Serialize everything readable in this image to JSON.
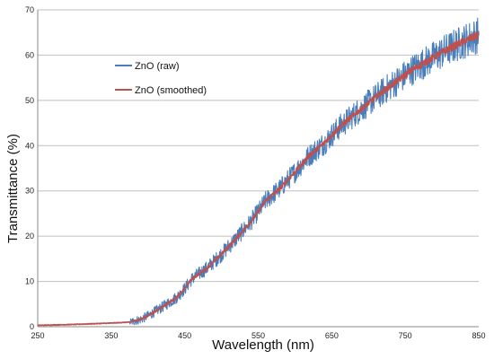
{
  "chart_data": {
    "type": "line",
    "title": "",
    "xlabel": "Wavelength (nm)",
    "ylabel": "Transmittance (%)",
    "xlim": [
      250,
      850
    ],
    "ylim": [
      0,
      70
    ],
    "x_ticks": [
      250,
      350,
      450,
      550,
      650,
      750,
      850
    ],
    "y_ticks": [
      0,
      10,
      20,
      30,
      40,
      50,
      60,
      70
    ],
    "x_tick_labels": [
      "250",
      "350",
      "450",
      "550",
      "650",
      "750",
      "850"
    ],
    "y_tick_labels": [
      "0",
      "10",
      "20",
      "30",
      "40",
      "50",
      "60",
      "70"
    ],
    "grid": "horizontal",
    "legend_position": "top-left",
    "series": [
      {
        "name": "ZnO (raw)",
        "color": "#4a7ebb",
        "x": [
          250,
          300,
          350,
          375,
          390,
          400,
          420,
          440,
          450,
          460,
          480,
          500,
          520,
          540,
          550,
          560,
          580,
          600,
          620,
          640,
          650,
          660,
          680,
          700,
          720,
          740,
          750,
          760,
          780,
          800,
          820,
          840,
          850
        ],
        "y": [
          0.3,
          0.5,
          0.8,
          1.0,
          1.6,
          2.4,
          4.4,
          6.6,
          8.4,
          10.6,
          12.9,
          16.0,
          19.5,
          23.2,
          25.4,
          27.8,
          30.6,
          34.2,
          37.9,
          40.6,
          42.3,
          44.0,
          46.8,
          49.4,
          52.0,
          54.4,
          55.6,
          56.8,
          58.7,
          60.6,
          62.3,
          63.8,
          64.5
        ],
        "noise": "high"
      },
      {
        "name": "ZnO (smoothed)",
        "color": "#c0504d",
        "x": [
          250,
          300,
          350,
          375,
          390,
          400,
          420,
          440,
          450,
          460,
          480,
          500,
          520,
          540,
          550,
          560,
          580,
          600,
          620,
          640,
          650,
          660,
          680,
          700,
          720,
          740,
          750,
          760,
          780,
          800,
          820,
          840,
          850
        ],
        "y": [
          0.3,
          0.5,
          0.8,
          1.0,
          1.6,
          2.4,
          4.4,
          6.6,
          8.4,
          10.6,
          12.9,
          16.0,
          19.5,
          23.2,
          25.4,
          27.8,
          30.6,
          34.2,
          37.9,
          40.6,
          42.3,
          44.0,
          46.8,
          49.4,
          52.0,
          54.4,
          55.6,
          56.8,
          58.7,
          60.6,
          62.3,
          63.8,
          64.5
        ],
        "noise": "low"
      }
    ]
  }
}
